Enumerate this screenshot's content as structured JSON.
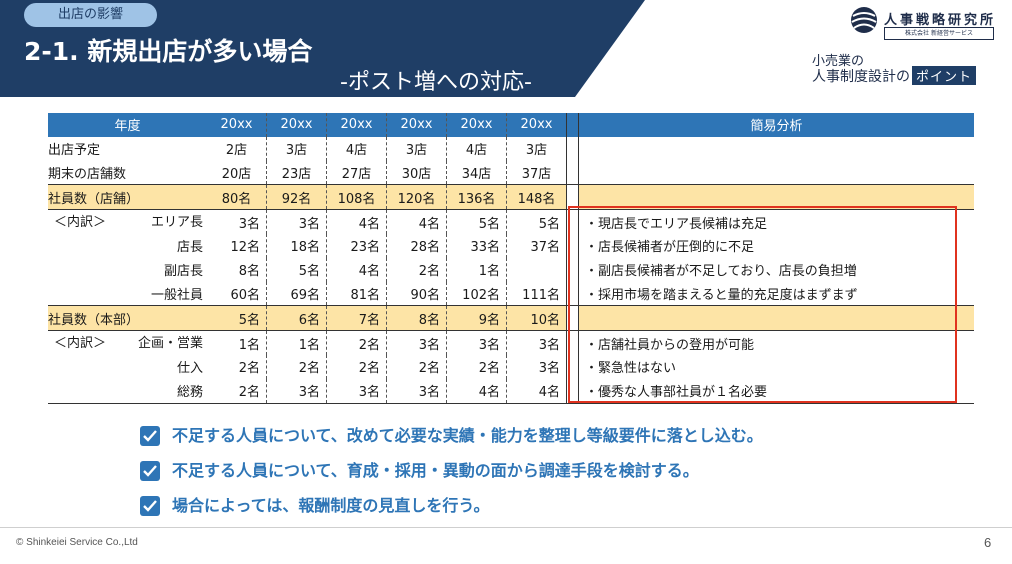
{
  "header": {
    "badge": "出店の影響",
    "title": "2-1. 新規出店が多い場合",
    "subtitle": "-ポスト増への対応-",
    "bg_color": "#1f3e66"
  },
  "logo": {
    "name": "人事戦略研究所",
    "sub": "株式会社 新経営サービス"
  },
  "promo": {
    "line1": "小売業の",
    "line2": "人事制度設計の",
    "point": "ポイント"
  },
  "table": {
    "header_label": "年度",
    "years": [
      "20xx",
      "20xx",
      "20xx",
      "20xx",
      "20xx",
      "20xx"
    ],
    "analysis_header": "簡易分析",
    "rows": [
      {
        "label": "出店予定",
        "values": [
          "2店",
          "3店",
          "4店",
          "3店",
          "4店",
          "3店"
        ],
        "analysis": ""
      },
      {
        "label": "期末の店舗数",
        "values": [
          "20店",
          "23店",
          "27店",
          "30店",
          "34店",
          "37店"
        ],
        "analysis": ""
      },
      {
        "label": "社員数（店舗）",
        "values": [
          "80名",
          "92名",
          "108名",
          "120名",
          "136名",
          "148名"
        ],
        "analysis": ""
      },
      {
        "prefix": "＜内訳＞",
        "label": "エリア長",
        "values": [
          "3名",
          "3名",
          "4名",
          "4名",
          "5名",
          "5名"
        ],
        "analysis": "・現店長でエリア長候補は充足"
      },
      {
        "label": "店長",
        "values": [
          "12名",
          "18名",
          "23名",
          "28名",
          "33名",
          "37名"
        ],
        "analysis": "・店長候補者が圧倒的に不足"
      },
      {
        "label": "副店長",
        "values": [
          "8名",
          "5名",
          "4名",
          "2名",
          "1名",
          ""
        ],
        "analysis": "・副店長候補者が不足しており、店長の負担増"
      },
      {
        "label": "一般社員",
        "values": [
          "60名",
          "69名",
          "81名",
          "90名",
          "102名",
          "111名"
        ],
        "analysis": "・採用市場を踏まえると量的充足度はまずまず"
      },
      {
        "label": "社員数（本部）",
        "values": [
          "5名",
          "6名",
          "7名",
          "8名",
          "9名",
          "10名"
        ],
        "analysis": ""
      },
      {
        "prefix": "＜内訳＞",
        "label": "企画・営業",
        "values": [
          "1名",
          "1名",
          "2名",
          "3名",
          "3名",
          "3名"
        ],
        "analysis": "・店舗社員からの登用が可能"
      },
      {
        "label": "仕入",
        "values": [
          "2名",
          "2名",
          "2名",
          "2名",
          "2名",
          "3名"
        ],
        "analysis": "・緊急性はない"
      },
      {
        "label": "総務",
        "values": [
          "2名",
          "3名",
          "3名",
          "3名",
          "4名",
          "4名"
        ],
        "analysis": "・優秀な人事部社員が１名必要"
      }
    ]
  },
  "checks": [
    "不足する人員について、改めて必要な実績・能力を整理し等級要件に落とし込む。",
    "不足する人員について、育成・採用・異動の面から調達手段を検討する。",
    "場合によっては、報酬制度の見直しを行う。"
  ],
  "footer": {
    "copyright": "© Shinkeiei Service Co.,Ltd",
    "page": "6"
  },
  "colors": {
    "header_bg": "#1f3e66",
    "table_header": "#2e75b6",
    "highlight_row": "#fde4a6",
    "redbox": "#e0321f",
    "check": "#2e75b6"
  }
}
